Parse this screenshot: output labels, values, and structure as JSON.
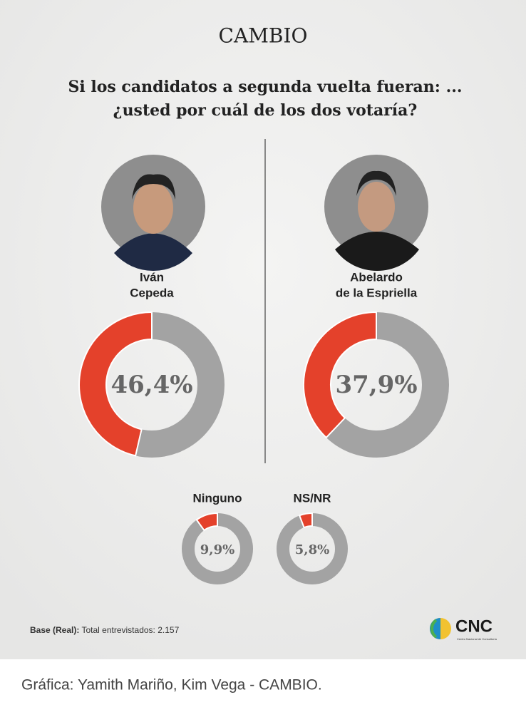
{
  "brand": "CAMBIO",
  "title_lines": [
    "Si los candidatos a segunda vuelta fueran: ...",
    "¿usted por cuál de los dos votaría?"
  ],
  "chart_data": [
    {
      "type": "donut",
      "label_lines": [
        "Iván",
        "Cepeda"
      ],
      "values": [
        46.4
      ],
      "value_labels": [
        "46,4%"
      ],
      "color": "#e4412b",
      "track_color": "#a3a3a3"
    },
    {
      "type": "donut",
      "label_lines": [
        "Abelardo",
        "de la Espriella"
      ],
      "values": [
        37.9
      ],
      "value_labels": [
        "37,9%"
      ],
      "color": "#e4412b",
      "track_color": "#a3a3a3"
    },
    {
      "type": "donut",
      "label_lines": [
        "Ninguno"
      ],
      "values": [
        9.9
      ],
      "value_labels": [
        "9,9%"
      ],
      "color": "#e4412b",
      "track_color": "#a3a3a3"
    },
    {
      "type": "donut",
      "label_lines": [
        "NS/NR"
      ],
      "values": [
        5.8
      ],
      "value_labels": [
        "5,8%"
      ],
      "color": "#e4412b",
      "track_color": "#a3a3a3"
    }
  ],
  "base_label": "Base (Real):",
  "base_text": "Total entrevistados: 2.157",
  "logo": "CNC",
  "logo_subtitle": "Centro Nacional de Consultoría",
  "credit": "Gráfica: Yamith Mariño, Kim Vega - CAMBIO."
}
